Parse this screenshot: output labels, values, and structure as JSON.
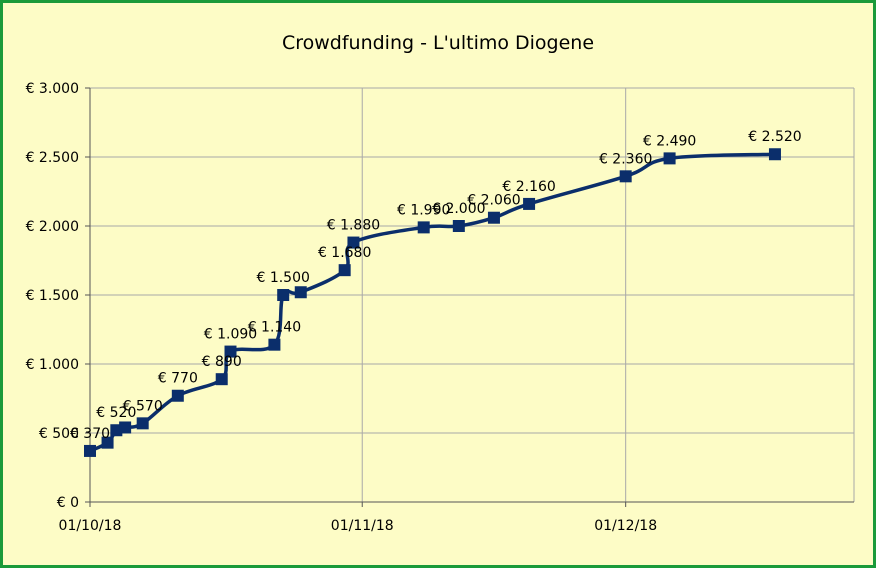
{
  "colors": {
    "border": "#1a9a3a",
    "background": "#fdfcc6",
    "line": "#0b2e6b",
    "marker": "#0b2e6b",
    "grid": "#a8a8a8"
  },
  "chart_data": {
    "type": "line",
    "title": "Crowdfunding - L'ultimo Diogene",
    "xlabel": "",
    "ylabel": "",
    "grid": true,
    "legend": "none",
    "ylim": [
      0,
      3000
    ],
    "xlim": [
      "2018-10-01",
      "2018-12-27"
    ],
    "y_ticks": [
      0,
      500,
      1000,
      1500,
      2000,
      2500,
      3000
    ],
    "y_tick_labels": [
      "€ 0",
      "€ 500",
      "€ 1.000",
      "€ 1.500",
      "€ 2.000",
      "€ 2.500",
      "€ 3.000"
    ],
    "x_ticks": [
      "2018-10-01",
      "2018-11-01",
      "2018-12-01"
    ],
    "x_tick_labels": [
      "01/10/18",
      "01/11/18",
      "01/12/18"
    ],
    "series": [
      {
        "points": [
          {
            "x": "2018-10-01",
            "y": 370,
            "label": "€ 370"
          },
          {
            "x": "2018-10-03",
            "y": 430,
            "label": ""
          },
          {
            "x": "2018-10-04",
            "y": 520,
            "label": "€ 520"
          },
          {
            "x": "2018-10-05",
            "y": 540,
            "label": ""
          },
          {
            "x": "2018-10-07",
            "y": 570,
            "label": "€ 570"
          },
          {
            "x": "2018-10-11",
            "y": 770,
            "label": "€ 770"
          },
          {
            "x": "2018-10-16",
            "y": 890,
            "label": "€ 890"
          },
          {
            "x": "2018-10-17",
            "y": 1090,
            "label": "€ 1.090"
          },
          {
            "x": "2018-10-22",
            "y": 1140,
            "label": "€ 1.140"
          },
          {
            "x": "2018-10-23",
            "y": 1500,
            "label": "€ 1.500"
          },
          {
            "x": "2018-10-25",
            "y": 1520,
            "label": ""
          },
          {
            "x": "2018-10-30",
            "y": 1680,
            "label": "€ 1.680"
          },
          {
            "x": "2018-10-31",
            "y": 1880,
            "label": "€ 1.880"
          },
          {
            "x": "2018-11-08",
            "y": 1990,
            "label": "€ 1.990"
          },
          {
            "x": "2018-11-12",
            "y": 2000,
            "label": "€ 2.000"
          },
          {
            "x": "2018-11-16",
            "y": 2060,
            "label": "€ 2.060"
          },
          {
            "x": "2018-11-20",
            "y": 2160,
            "label": "€ 2.160"
          },
          {
            "x": "2018-12-01",
            "y": 2360,
            "label": "€ 2.360"
          },
          {
            "x": "2018-12-06",
            "y": 2490,
            "label": "€ 2.490"
          },
          {
            "x": "2018-12-18",
            "y": 2520,
            "label": "€ 2.520"
          }
        ]
      }
    ]
  }
}
